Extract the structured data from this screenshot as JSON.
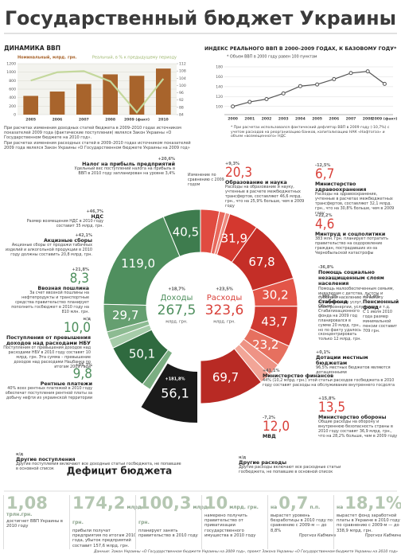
{
  "header": {
    "title": "Государственный бюджет Украины"
  },
  "chart_data": [
    {
      "type": "bar",
      "title": "ДИНАМИКА ВВП",
      "categories": [
        "2005",
        "2006",
        "2007",
        "2008",
        "2009 (факт)",
        "2010"
      ],
      "series": [
        {
          "name": "Номинальный, млрд. грн.",
          "color": "#a8642c",
          "values": [
            441,
            544,
            721,
            948,
            914,
            1085
          ]
        },
        {
          "name": "Реальный, в % к предыдущему периоду",
          "color": "#c4d89c",
          "type": "line",
          "axis": "y2",
          "values": [
            102.7,
            107.3,
            107.9,
            102.3,
            85.2,
            103.7
          ]
        }
      ],
      "ylim": [
        0,
        1200
      ],
      "yticks": [
        0,
        200,
        400,
        600,
        800,
        1000,
        1200
      ],
      "y2lim": [
        84,
        112
      ],
      "y2ticks": [
        84,
        88,
        92,
        96,
        100,
        104,
        108,
        112
      ],
      "grid": true
    },
    {
      "type": "line",
      "title": "ИНДЕКС РЕАЛЬНОГО ВВП В 2000–2009 ГОДАХ, К БАЗОВОМУ ГОДУ*",
      "subtitle": "* Объем ВВП в 2000 году равен 100 пунктам",
      "categories": [
        "2000",
        "2001",
        "2002",
        "2003",
        "2004",
        "2005",
        "2006",
        "2007",
        "2008",
        "2009 (факт)"
      ],
      "values": [
        100,
        109.2,
        114.9,
        126.4,
        141.1,
        144.5,
        155.2,
        167.5,
        171.0,
        145.7
      ],
      "color": "#555555",
      "ylim": [
        90,
        180
      ],
      "yticks": [
        100,
        120,
        140,
        160,
        180
      ],
      "grid": true
    },
    {
      "type": "donut",
      "change_caption": "Изменение по сравнению с 2009 годом",
      "income": {
        "label": "Доходы",
        "value": 267.5,
        "value_label": "267,5",
        "unit": "млрд. грн.",
        "change": "+18,7%",
        "color": "#4f8f5e",
        "segments": [
          {
            "name": "Налог на прибыль предприятий",
            "value": 40.5,
            "value_label": "40,5",
            "change": "+20,6%",
            "note": "Удельный вес поступлений налога на прибыль в ВВП в 2010 году запланирован на уровне 3,4%"
          },
          {
            "name": "НДС",
            "value": 119.0,
            "value_label": "119,0",
            "change": "+46,7%",
            "note": "Размер возмещения НДС в 2010 году составит 35 млрд. грн."
          },
          {
            "name": "Акцизные сборы",
            "value": 29.7,
            "value_label": "29,7",
            "change": "+42,1%",
            "note": "Акцизные сборы от продажи табачных изделий и алкогольной продукции в 2010 году должны составить 20,8 млрд. грн."
          },
          {
            "name": "Ввозная пошлина",
            "value": 8.3,
            "value_label": "8,3",
            "change": "+21,8%",
            "note": "За счет ввозной пошлины на нефтепродукты и транспортные средства правительство планирует пополнить госбюджет в 2010 году на 810 млн. грн."
          },
          {
            "name": "Поступления от превышения доходов над расходами НБУ",
            "value": 10.0,
            "value_label": "10,0",
            "change": "н/д",
            "note": "Поступления от превышения доходов над расходами НБУ в 2010 году составят 10 млрд. грн. Эта сумма – превышение доходов над расходами Нацбанка по итогам 2009 года"
          },
          {
            "name": "Другие поступления",
            "value": 50.1,
            "value_label": "50,1",
            "change": "н/д",
            "note": "Другие поступления включают все доходные статьи госбюджета, не попавшие в основной список"
          },
          {
            "name": "Рентные платежи",
            "value": 9.8,
            "value_label": "9,8",
            "change": "+35,7%",
            "note": "40% всех рентных платежей в 2010 году обеспечат поступления рентной платы за добычу нефти из украинской территории"
          }
        ]
      },
      "expenses": {
        "label": "Расходы",
        "value": 323.6,
        "value_label": "323,6",
        "unit": "млрд. грн.",
        "change": "+23,5%",
        "color": "#d9413a",
        "segments": [
          {
            "name": "Образование и наука",
            "value": 20.3,
            "value_label": "20,3",
            "change": "+9,3%",
            "note": "Расходы на образование и науку, учтенные в расчете межбюджетных трансфертов, составляют 46,6 млрд. грн., что на 25,9% больше, чем в 2009 году"
          },
          {
            "name": "Министерство здравоохранения",
            "value": 6.7,
            "value_label": "6,7",
            "change": "-12,5%",
            "note": "Расходы на здравоохранение, учтенные в расчетах межбюджетных трансфертов, составляют 32,1 млрд. грн., что на 30,8% больше, чем в 2009 году"
          },
          {
            "name": "Минтруд и соцполитики",
            "value": 4.6,
            "value_label": "4,6",
            "change": "+22,2%",
            "note": "383 млн. грн. планирует потратить правительство на оздоровление граждан, пострадавших из-за Чернобыльской катастрофы"
          },
          {
            "name": "Помощь социально незащищенным слоям населения",
            "value": 31.9,
            "value_label": "31,9",
            "change": "-36,8%",
            "note": "Помощь малообеспеченным семьям, инвалидам с детства, льготы и субсидии населению на оплату коммунальных услуг, электроэнергии, услуг связи и т.д."
          },
          {
            "name": "Пенсионный фонд",
            "value": 67.8,
            "value_label": "67,8",
            "change": "+51,0%",
            "note": "С 1 июля 2010 года размер минимальной пенсии составит 709 грн."
          },
          {
            "name": "Стабфонд",
            "value": 30.2,
            "value_label": "30,2",
            "change": "+386,2%",
            "note": "Объем Стабилизационного фонда на 2009 год планировался в сумме 20 млрд. грн., но по факту удалось сконцентрировать только 12 млрд. грн."
          },
          {
            "name": "Дотации местным бюджетам",
            "value": 43.7,
            "value_label": "43,7",
            "change": "+0,1%",
            "note": "96,5% местных бюджетов являются дотационными"
          },
          {
            "name": "Министерство финансов",
            "value": 23.2,
            "value_label": "23,2",
            "change": "+41,1%",
            "note": "44% (10,2 млрд. грн.) этой статьи расходов госбюджета в 2010 году составят расходы на обслуживание внутреннего госдолга"
          },
          {
            "name": "Министерство обороны",
            "value": 13.5,
            "value_label": "13,5",
            "change": "+15,8%",
            "note": "Общие расходы на оборону и внутреннюю безопасность страны в 2010 году составят 36,9 млрд. грн., что на 28,2% больше, чем в 2009 году"
          },
          {
            "name": "МВД",
            "value": 12.0,
            "value_label": "12,0",
            "change": "-7,2%"
          },
          {
            "name": "Другие расходы",
            "value": 69.7,
            "value_label": "69,7",
            "change": "н/д",
            "note": "Другие расходы включают все расходные статьи госбюджета, не попавшие в основной список"
          }
        ]
      },
      "deficit": {
        "label": "Дефицит бюджета",
        "value": 56.1,
        "value_label": "56,1",
        "change": "+181,8%",
        "color": "#1a1a1a"
      }
    }
  ],
  "notes": {
    "left": [
      "При расчетах изменения доходных статей бюджета в 2009–2010 годах источником показателей 2009 года (фактические поступления) являлся Закон Украины «О Государственном бюджете на 2010 год».",
      "При расчетах изменения расходных статей в 2009–2010 годах источником показателей 2009 года являлся Закон Украины «О Государственном бюджете Украины на 2009 год»"
    ],
    "right": "* При расчетах использовался фактический дефлятор ВВП в 2009 году (-10,7%) с учетом расходов на реорганизацию банков, капитализацию НАК «Нафтогаз» и объем «возмещенного» НДС"
  },
  "stats": [
    {
      "value": "1,08",
      "unit": "трлн.грн.",
      "text": "достигнет ВВП Украины в 2010 году"
    },
    {
      "value": "174,2",
      "unit": "млрд. грн.",
      "text": "прибыли получат предприятия по итогам 2010 года, убыток предприятий составит 157,6 млрд. грн."
    },
    {
      "value": "100,3",
      "unit": "млрд. грн.",
      "text": "планирует занять правительство в 2010 году"
    },
    {
      "value": "10",
      "unit": "млрд. грн.",
      "text": "намерено получить правительство от приватизации государственного имущества в 2010 году"
    },
    {
      "prefix": "на",
      "value": "0,7",
      "unit": "п.п.",
      "text": "вырастет уровень безработицы в 2010 году по сравнению с 2009-м — до 8,8%",
      "source": "Прогноз Кабмина"
    },
    {
      "prefix": "на",
      "value": "18,1%",
      "text": "вырастет фонд заработной платы в Украине в 2010 году по сравнению с 2009-м — до 338,9 млрд. грн.",
      "source": "Прогноз Кабмина"
    }
  ],
  "source": "Данные: Закон Украины «О Государственном бюджете Украины на 2009 год», проект Закона Украины «О Государственном бюджете Украины на 2010 год»"
}
